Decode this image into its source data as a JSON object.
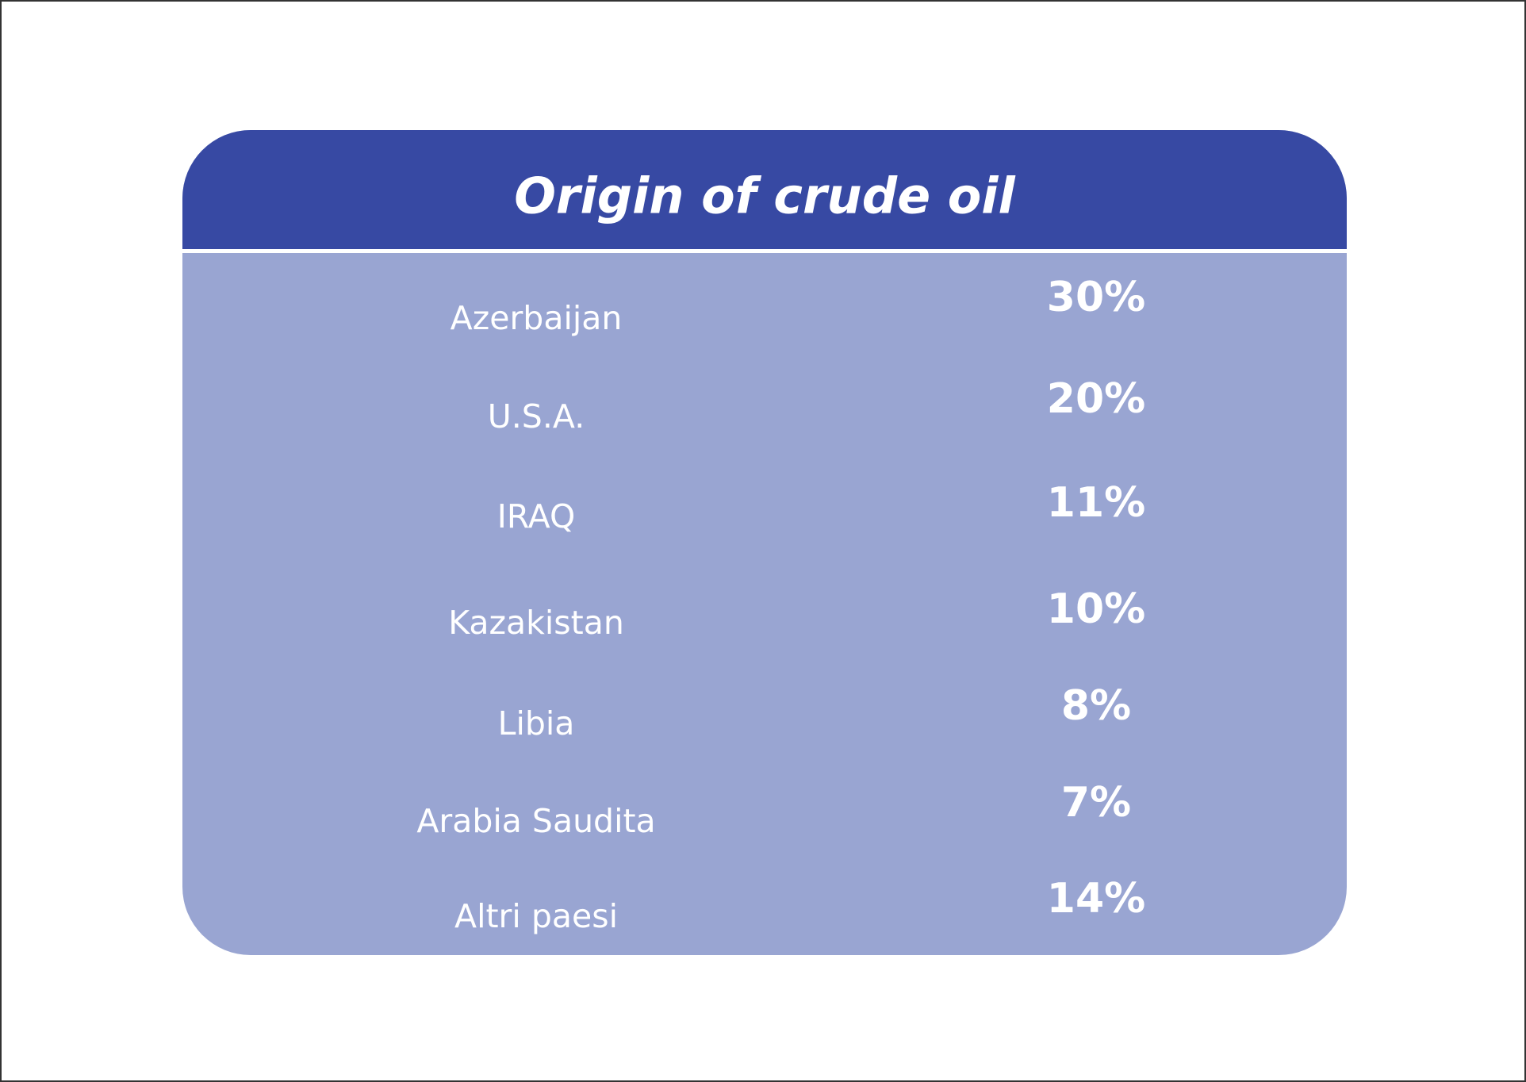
{
  "header": {
    "title": "Origin of crude oil"
  },
  "table": {
    "rows": [
      [
        "Azerbaijan",
        "30%"
      ],
      [
        "U.S.A.",
        "20%"
      ],
      [
        "IRAQ",
        "11%"
      ],
      [
        "Kazakistan",
        "10%"
      ],
      [
        "Libia",
        "8%"
      ],
      [
        "Arabia Saudita",
        "7%"
      ],
      [
        "Altri paesi",
        "14%"
      ]
    ]
  }
}
